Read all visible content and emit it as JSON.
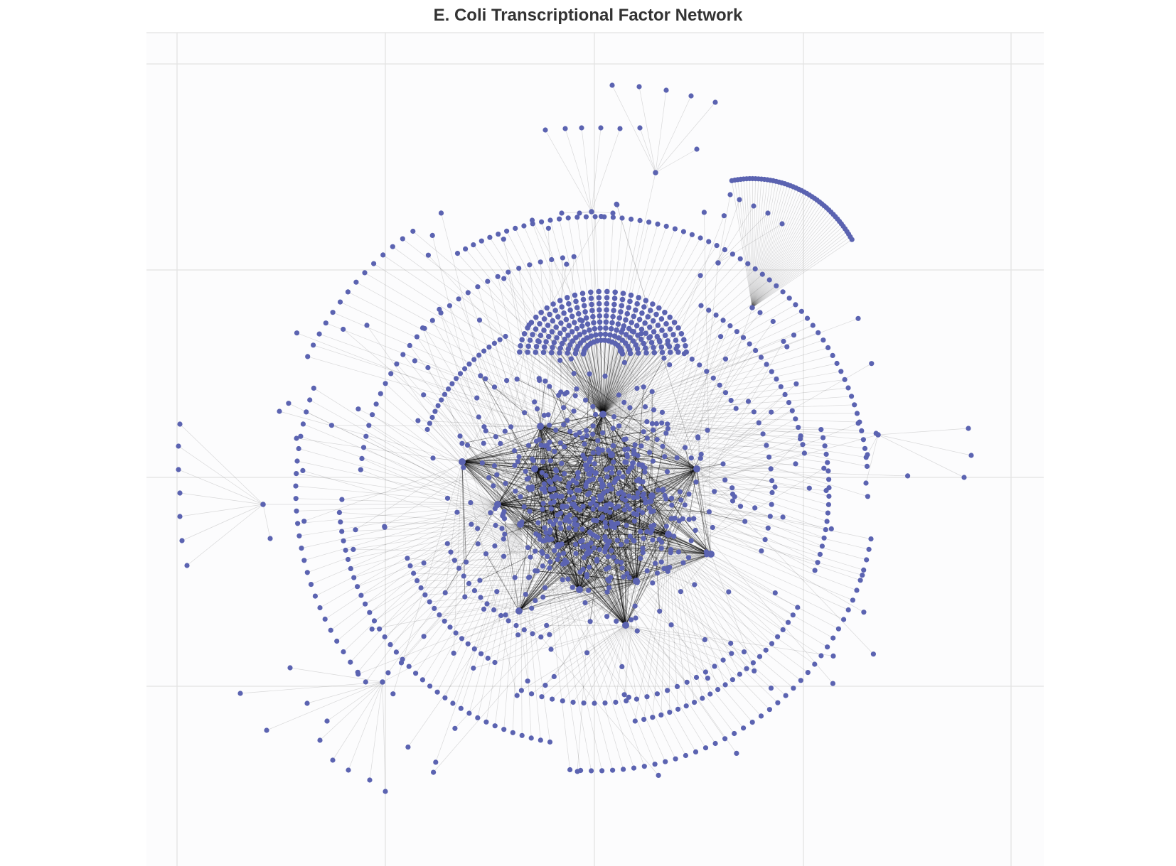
{
  "chart": {
    "title": "E. Coli Transcriptional Factor Network"
  },
  "colors": {
    "node": "#5b63b1",
    "edge": "#000000",
    "grid": "#e2e2e2",
    "plot_background": "#fcfcfd"
  },
  "chart_data": {
    "type": "network",
    "title": "E. Coli Transcriptional Factor Network",
    "xlabel": "",
    "ylabel": "",
    "grid": true,
    "axis_ticks_shown": false,
    "legend": "none",
    "node_shape": "circle",
    "edge_style": "thin translucent straight lines",
    "layout": "force-directed, dense central core with radial fans of leaf genes"
  }
}
